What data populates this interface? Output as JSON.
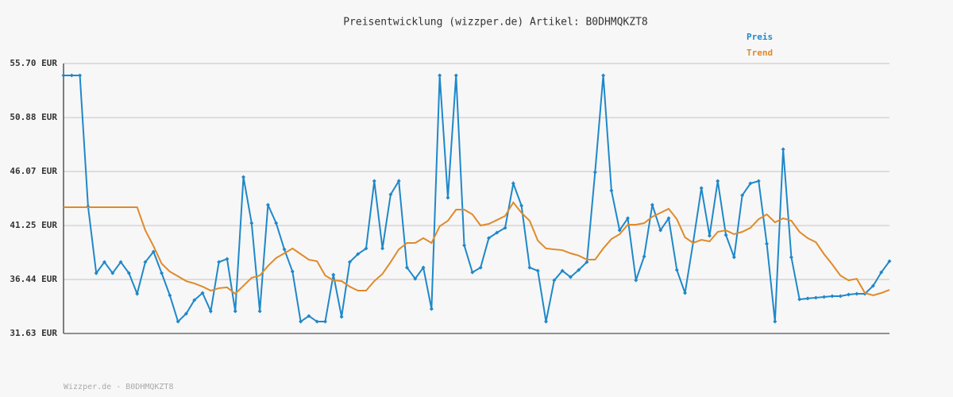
{
  "chart_data": {
    "type": "line",
    "title": "Preisentwicklung (wizzper.de) Artikel: B0DHMQKZT8",
    "footer": "Wizzper.de - B0DHMQKZT8",
    "ylim": [
      31.63,
      55.7
    ],
    "yticks": [
      {
        "value": 31.63,
        "label": "31.63 EUR"
      },
      {
        "value": 36.44,
        "label": "36.44 EUR"
      },
      {
        "value": 41.25,
        "label": "41.25 EUR"
      },
      {
        "value": 46.07,
        "label": "46.07 EUR"
      },
      {
        "value": 50.88,
        "label": "50.88 EUR"
      },
      {
        "value": 55.7,
        "label": "55.70 EUR"
      }
    ],
    "grid": true,
    "legend": "top-right",
    "series": [
      {
        "name": "Preis",
        "color": "#1f88c9",
        "markers": true,
        "values": [
          54.64,
          54.64,
          54.64,
          42.96,
          37.01,
          38.0,
          37.01,
          38.0,
          37.01,
          35.17,
          38.0,
          38.92,
          37.01,
          35.03,
          32.69,
          33.4,
          34.6,
          35.24,
          33.61,
          38.0,
          38.28,
          33.61,
          45.58,
          41.47,
          33.61,
          43.1,
          41.47,
          39.13,
          37.15,
          32.69,
          33.19,
          32.69,
          32.69,
          36.87,
          33.12,
          38.0,
          38.71,
          39.21,
          45.22,
          39.21,
          44.02,
          45.22,
          37.51,
          36.51,
          37.51,
          33.82,
          54.64,
          43.74,
          54.64,
          39.49,
          37.08,
          37.51,
          40.13,
          40.62,
          41.05,
          45.01,
          43.03,
          37.51,
          37.22,
          32.69,
          36.37,
          37.22,
          36.66,
          37.29,
          38.0,
          46.0,
          54.64,
          44.37,
          40.83,
          41.9,
          36.37,
          38.5,
          43.1,
          40.83,
          41.9,
          37.29,
          35.24,
          39.77,
          44.59,
          40.34,
          45.22,
          40.41,
          38.43,
          43.95,
          45.01,
          45.22,
          39.63,
          32.69,
          48.05,
          38.43,
          34.67,
          34.75,
          34.82,
          34.89,
          34.96,
          34.96,
          35.1,
          35.17,
          35.17,
          35.88,
          37.08,
          38.07
        ]
      },
      {
        "name": "Trend",
        "color": "#e08a2a",
        "markers": false,
        "values": [
          42.89,
          42.89,
          42.89,
          42.89,
          42.89,
          42.89,
          42.89,
          42.89,
          42.89,
          42.89,
          40.83,
          39.42,
          37.86,
          37.15,
          36.73,
          36.3,
          36.09,
          35.81,
          35.45,
          35.67,
          35.74,
          35.17,
          35.88,
          36.59,
          36.8,
          37.65,
          38.36,
          38.78,
          39.21,
          38.71,
          38.21,
          38.07,
          36.8,
          36.37,
          36.3,
          35.81,
          35.45,
          35.45,
          36.3,
          36.94,
          38.0,
          39.13,
          39.7,
          39.7,
          40.13,
          39.7,
          41.19,
          41.68,
          42.67,
          42.67,
          42.25,
          41.26,
          41.4,
          41.75,
          42.11,
          43.31,
          42.39,
          41.68,
          39.91,
          39.21,
          39.13,
          39.06,
          38.78,
          38.57,
          38.21,
          38.21,
          39.21,
          40.05,
          40.48,
          41.33,
          41.33,
          41.47,
          42.04,
          42.39,
          42.75,
          41.82,
          40.2,
          39.7,
          39.98,
          39.84,
          40.69,
          40.83,
          40.48,
          40.69,
          41.05,
          41.82,
          42.25,
          41.54,
          41.9,
          41.68,
          40.69,
          40.13,
          39.77,
          38.71,
          37.79,
          36.8,
          36.37,
          36.51,
          35.24,
          35.03,
          35.24,
          35.52
        ]
      }
    ]
  }
}
